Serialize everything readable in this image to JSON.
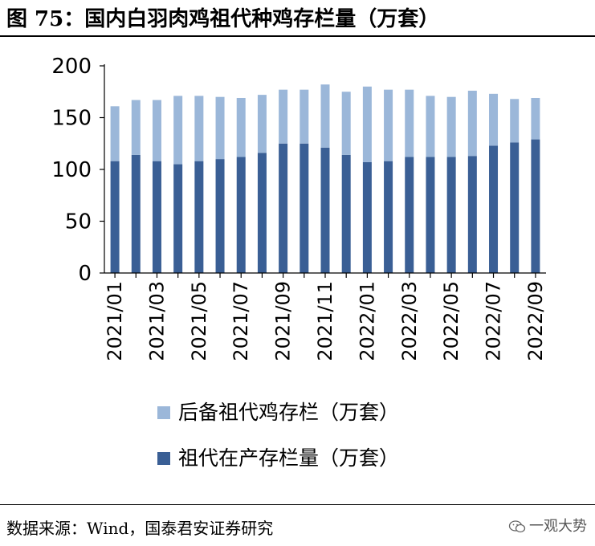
{
  "title": "图 75：国内白羽肉鸡祖代种鸡存栏量（万套）",
  "source": "数据来源：Wind，国泰君安证券研究",
  "watermark": "一观大势",
  "colors": {
    "reserve": "#9bb7d9",
    "productive": "#3a5f95",
    "axis": "#000000"
  },
  "chart_data": {
    "type": "bar",
    "stacked": true,
    "categories": [
      "2021/01",
      "2021/02",
      "2021/03",
      "2021/04",
      "2021/05",
      "2021/06",
      "2021/07",
      "2021/08",
      "2021/09",
      "2021/10",
      "2021/11",
      "2021/12",
      "2022/01",
      "2022/02",
      "2022/03",
      "2022/04",
      "2022/05",
      "2022/06",
      "2022/07",
      "2022/08",
      "2022/09"
    ],
    "tick_labels": [
      "2021/01",
      "2021/03",
      "2021/05",
      "2021/07",
      "2021/09",
      "2021/11",
      "2022/01",
      "2022/03",
      "2022/05",
      "2022/07",
      "2022/09"
    ],
    "series": [
      {
        "name": "祖代在产存栏量（万套）",
        "values": [
          108,
          114,
          108,
          105,
          108,
          110,
          112,
          116,
          125,
          125,
          121,
          114,
          107,
          108,
          112,
          112,
          112,
          113,
          123,
          126,
          129
        ]
      },
      {
        "name": "后备祖代鸡存栏（万套）",
        "values": [
          53,
          53,
          59,
          66,
          63,
          60,
          57,
          56,
          52,
          52,
          61,
          61,
          73,
          69,
          65,
          59,
          58,
          63,
          50,
          42,
          40
        ]
      }
    ],
    "ylim": [
      0,
      200
    ],
    "yticks": [
      0,
      50,
      100,
      150,
      200
    ],
    "legend_position": "bottom"
  }
}
